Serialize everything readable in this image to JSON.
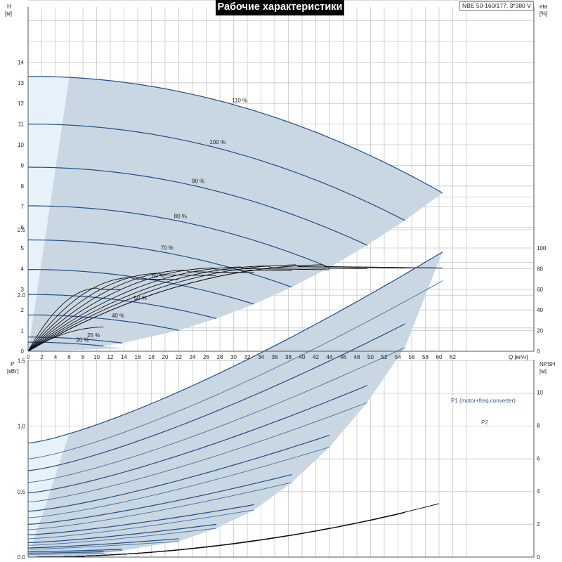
{
  "header": {
    "title": "Рабочие характеристики",
    "model": "NBE 50-160/177, 3*380 V"
  },
  "colors": {
    "envelope_fill": "#c9d7e3",
    "low_region_fill": "#e6f1fa",
    "curve_blue": "#1f4e86",
    "curve_black": "#111111",
    "grid": "#c8c8c8",
    "label_blue": "#3a5c88"
  },
  "chart_data": [
    {
      "type": "line",
      "panel": "head-and-efficiency",
      "title": "Рабочие характеристики",
      "xlabel": "Q [м³/ч]",
      "ylabel": "H [м]",
      "y2label": "eta [%]",
      "xlim": [
        0,
        64
      ],
      "ylim": [
        0,
        17
      ],
      "y2lim": [
        0,
        100
      ],
      "xticks": [
        0,
        2,
        4,
        6,
        8,
        10,
        12,
        14,
        16,
        18,
        20,
        22,
        24,
        26,
        28,
        30,
        32,
        34,
        36,
        38,
        40,
        42,
        44,
        46,
        48,
        50,
        52,
        54,
        56,
        58,
        60,
        62
      ],
      "yticks": [
        0,
        1,
        2,
        3,
        4,
        5,
        6,
        7,
        8,
        9,
        10,
        11,
        12,
        13,
        14
      ],
      "y2ticks": [
        0,
        20,
        40,
        60,
        80,
        100
      ],
      "grid": true,
      "envelope": {
        "q_min_at_top": 6,
        "q_max": 60.5,
        "h_max_flow": 10.3,
        "q_at_min_speed": 14.0
      },
      "head_curves": [
        {
          "label": "110 %",
          "speed": 1.1,
          "qmax": 60.5
        },
        {
          "label": "100 %",
          "speed": 1.0,
          "qmax": 55.0
        },
        {
          "label": "90 %",
          "speed": 0.9,
          "qmax": 49.5
        },
        {
          "label": "80 %",
          "speed": 0.8,
          "qmax": 44.0
        },
        {
          "label": "70 %",
          "speed": 0.7,
          "qmax": 38.5
        },
        {
          "label": "60 %",
          "speed": 0.6,
          "qmax": 33.0
        },
        {
          "label": "50 %",
          "speed": 0.5,
          "qmax": 27.5
        },
        {
          "label": "40 %",
          "speed": 0.4,
          "qmax": 22.0
        },
        {
          "label": "25 %",
          "speed": 0.25,
          "qmax": 13.75
        },
        {
          "label": "20 %",
          "speed": 0.2,
          "qmax": 11.0
        }
      ],
      "head_model": {
        "h0": 11.0,
        "a": 0.001,
        "b": 0.00156
      },
      "efficiency_curves": [
        {
          "qmax": 60.5,
          "peak_eta": 82,
          "q_peak": 43
        },
        {
          "qmax": 55.0,
          "peak_eta": 82,
          "q_peak": 39
        },
        {
          "qmax": 49.5,
          "peak_eta": 81,
          "q_peak": 35
        },
        {
          "qmax": 44.0,
          "peak_eta": 80,
          "q_peak": 31
        },
        {
          "qmax": 38.5,
          "peak_eta": 79,
          "q_peak": 27
        },
        {
          "qmax": 33.0,
          "peak_eta": 77,
          "q_peak": 23
        },
        {
          "qmax": 27.5,
          "peak_eta": 74,
          "q_peak": 19
        },
        {
          "qmax": 22.0,
          "peak_eta": 70,
          "q_peak": 15
        },
        {
          "qmax": 13.75,
          "peak_eta": 60,
          "q_peak": 10
        },
        {
          "qmax": 11.0,
          "peak_eta": 23,
          "q_peak": 11
        }
      ]
    },
    {
      "type": "line",
      "panel": "power-and-npsh",
      "xlabel": "Q [м³/ч]",
      "ylabel": "P [кВт]",
      "y2label": "NPSH [м]",
      "xlim": [
        0,
        64
      ],
      "ylim": [
        0,
        2.8
      ],
      "y2lim": [
        0,
        10
      ],
      "yticks": [
        0,
        0.5,
        1.0,
        1.5,
        2.0,
        2.5
      ],
      "ytick_labels": [
        "0.0",
        "0.5",
        "1.0",
        "1.5",
        "2.0",
        "2.5"
      ],
      "y2ticks": [
        0,
        2,
        4,
        6,
        8,
        10
      ],
      "grid": true,
      "series": [
        {
          "name": "P1 (motor+freq.converter)",
          "p0": 0.87,
          "qmax": 60.5,
          "pmax": 2.33
        },
        {
          "name": "P2",
          "p0": 0.75,
          "qmax": 60.5,
          "pmax": 2.11
        }
      ],
      "p1_curves": [
        {
          "p0": 0.87,
          "qmax": 60.5,
          "pmax": 2.33
        },
        {
          "p0": 0.66,
          "qmax": 55.0,
          "pmax": 1.78
        },
        {
          "p0": 0.49,
          "qmax": 49.5,
          "pmax": 1.31
        },
        {
          "p0": 0.35,
          "qmax": 44.0,
          "pmax": 0.93
        },
        {
          "p0": 0.25,
          "qmax": 38.5,
          "pmax": 0.63
        },
        {
          "p0": 0.17,
          "qmax": 33.0,
          "pmax": 0.4
        },
        {
          "p0": 0.11,
          "qmax": 27.5,
          "pmax": 0.25
        },
        {
          "p0": 0.07,
          "qmax": 22.0,
          "pmax": 0.14
        },
        {
          "p0": 0.04,
          "qmax": 13.75,
          "pmax": 0.06
        },
        {
          "p0": 0.03,
          "qmax": 11.0,
          "pmax": 0.04
        }
      ],
      "p2_curves": [
        {
          "p0": 0.75,
          "qmax": 60.5,
          "pmax": 2.11
        },
        {
          "p0": 0.57,
          "qmax": 55.0,
          "pmax": 1.6
        },
        {
          "p0": 0.42,
          "qmax": 49.5,
          "pmax": 1.18
        },
        {
          "p0": 0.3,
          "qmax": 44.0,
          "pmax": 0.84
        },
        {
          "p0": 0.21,
          "qmax": 38.5,
          "pmax": 0.57
        },
        {
          "p0": 0.14,
          "qmax": 33.0,
          "pmax": 0.36
        },
        {
          "p0": 0.09,
          "qmax": 27.5,
          "pmax": 0.22
        },
        {
          "p0": 0.06,
          "qmax": 22.0,
          "pmax": 0.12
        },
        {
          "p0": 0.03,
          "qmax": 13.75,
          "pmax": 0.05
        },
        {
          "p0": 0.02,
          "qmax": 11.0,
          "pmax": 0.03
        }
      ],
      "npsh_curves": [
        {
          "qmax": 60.5,
          "npsh_max": 3.3
        },
        {
          "qmax": 55.0,
          "npsh_max": 2.7
        },
        {
          "qmax": 49.5,
          "npsh_max": 2.2
        },
        {
          "qmax": 44.0,
          "npsh_max": 1.75
        },
        {
          "qmax": 38.5,
          "npsh_max": 1.35
        },
        {
          "qmax": 33.0,
          "npsh_max": 1.0
        },
        {
          "qmax": 27.5,
          "npsh_max": 0.7
        }
      ]
    }
  ]
}
